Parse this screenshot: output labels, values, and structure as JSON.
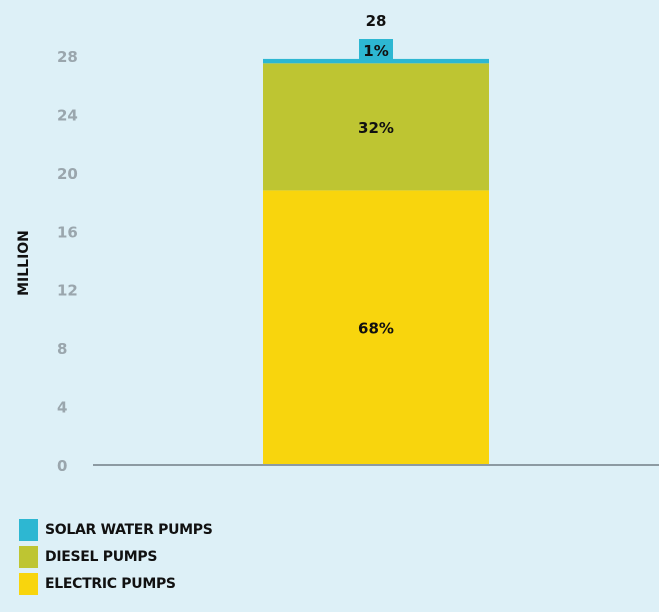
{
  "chart_data": {
    "type": "bar",
    "stacked": true,
    "categories": [
      ""
    ],
    "ylabel": "MILLION",
    "ylim": [
      0,
      28
    ],
    "yticks": [
      0,
      4,
      8,
      12,
      16,
      20,
      24,
      28
    ],
    "total_label": "28",
    "grid": false,
    "legend_position": "bottom-left",
    "series": [
      {
        "name": "ELECTRIC PUMPS",
        "value": 18.8,
        "label": "68%",
        "color": "#f8d50d"
      },
      {
        "name": "DIESEL PUMPS",
        "value": 8.7,
        "label": "32%",
        "color": "#bec532"
      },
      {
        "name": "SOLAR WATER PUMPS",
        "value": 0.3,
        "label": "1%",
        "color": "#2db7d2"
      }
    ],
    "legend": [
      {
        "name": "SOLAR WATER PUMPS",
        "color": "#2db7d2"
      },
      {
        "name": "DIESEL PUMPS",
        "color": "#bec532"
      },
      {
        "name": "ELECTRIC PUMPS",
        "color": "#f8d50d"
      }
    ]
  }
}
